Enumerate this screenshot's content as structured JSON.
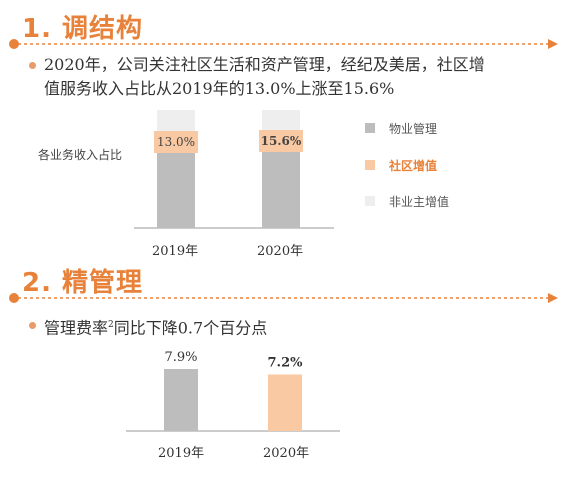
{
  "section1": {
    "title": "1. 调结构",
    "bullet_text_line1": "2020年，公司关注社区生活和资产管理，经纪及美居，社区增",
    "bullet_text_line2": "值服务收入占比从2019年的13.0%上涨至15.6%"
  },
  "section2": {
    "title": "2. 精管理",
    "bullet_text_pre": "管理费率",
    "bullet_text_sup": "2",
    "bullet_text_post": "同比下降0.7个百分点"
  },
  "colors": {
    "accent": "#e8823a",
    "gray": "#bdbdbd",
    "peach": "#f8c9a3",
    "light": "#eeeeee"
  },
  "chart_data": [
    {
      "type": "bar",
      "stacked": true,
      "categories": [
        "2019年",
        "2020年"
      ],
      "ylabel": "各业务收入占比",
      "series": [
        {
          "name": "物业管理",
          "color": "#bdbdbd"
        },
        {
          "name": "社区增值",
          "color": "#f8c9a3",
          "values": [
            13.0,
            15.6
          ],
          "labels": [
            "13.0%",
            "15.6%"
          ]
        },
        {
          "name": "非业主增值",
          "color": "#eeeeee"
        }
      ],
      "legend_placement": "right"
    },
    {
      "type": "bar",
      "categories": [
        "2019年",
        "2020年"
      ],
      "values": [
        7.9,
        7.2
      ],
      "labels": [
        "7.9%",
        "7.2%"
      ],
      "colors": [
        "#bdbdbd",
        "#f8c9a3"
      ]
    }
  ]
}
